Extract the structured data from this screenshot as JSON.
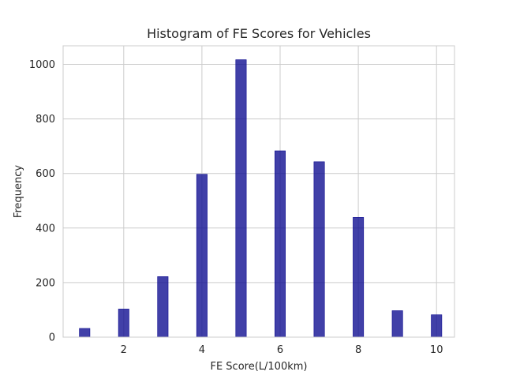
{
  "chart_data": {
    "type": "bar",
    "title": "Histogram of FE Scores for Vehicles",
    "xlabel": "FE Score(L/100km)",
    "ylabel": "Frequency",
    "x": [
      1,
      2,
      3,
      4,
      5,
      6,
      7,
      8,
      9,
      10
    ],
    "values": [
      32,
      103,
      222,
      597,
      1017,
      683,
      643,
      439,
      97,
      82
    ],
    "bar_width": 0.27,
    "xlim": [
      0.45,
      10.46
    ],
    "ylim": [
      0,
      1068
    ],
    "xticks": [
      2,
      4,
      6,
      8,
      10
    ],
    "yticks": [
      0,
      200,
      400,
      600,
      800,
      1000
    ],
    "grid": true,
    "bar_color": "#0c0a8f",
    "grid_color": "#cccccc"
  }
}
